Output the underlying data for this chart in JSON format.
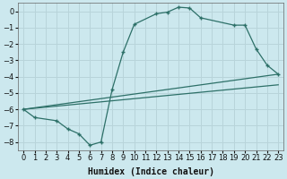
{
  "xlabel": "Humidex (Indice chaleur)",
  "bg_color": "#cce8ee",
  "grid_color": "#b8d4da",
  "line_color": "#2d7068",
  "xlim": [
    -0.5,
    23.5
  ],
  "ylim": [
    -8.5,
    0.5
  ],
  "xticks": [
    0,
    1,
    2,
    3,
    4,
    5,
    6,
    7,
    8,
    9,
    10,
    11,
    12,
    13,
    14,
    15,
    16,
    17,
    18,
    19,
    20,
    21,
    22,
    23
  ],
  "yticks": [
    0,
    -1,
    -2,
    -3,
    -4,
    -5,
    -6,
    -7,
    -8
  ],
  "curve_x": [
    0,
    1,
    3,
    4,
    5,
    6,
    7,
    8,
    9,
    10,
    12,
    13,
    14,
    15,
    16,
    19,
    20,
    21,
    22,
    23
  ],
  "curve_y": [
    -6.0,
    -6.5,
    -6.7,
    -7.2,
    -7.5,
    -8.2,
    -8.0,
    -4.8,
    -2.5,
    -0.8,
    -0.15,
    -0.05,
    0.25,
    0.2,
    -0.4,
    -0.85,
    -0.85,
    -2.3,
    -3.3,
    -3.85
  ],
  "line2_x": [
    0,
    23
  ],
  "line2_y": [
    -6.0,
    -3.85
  ],
  "line3_x": [
    0,
    23
  ],
  "line3_y": [
    -6.0,
    -4.5
  ],
  "xlabel_fontsize": 7,
  "tick_fontsize": 6
}
